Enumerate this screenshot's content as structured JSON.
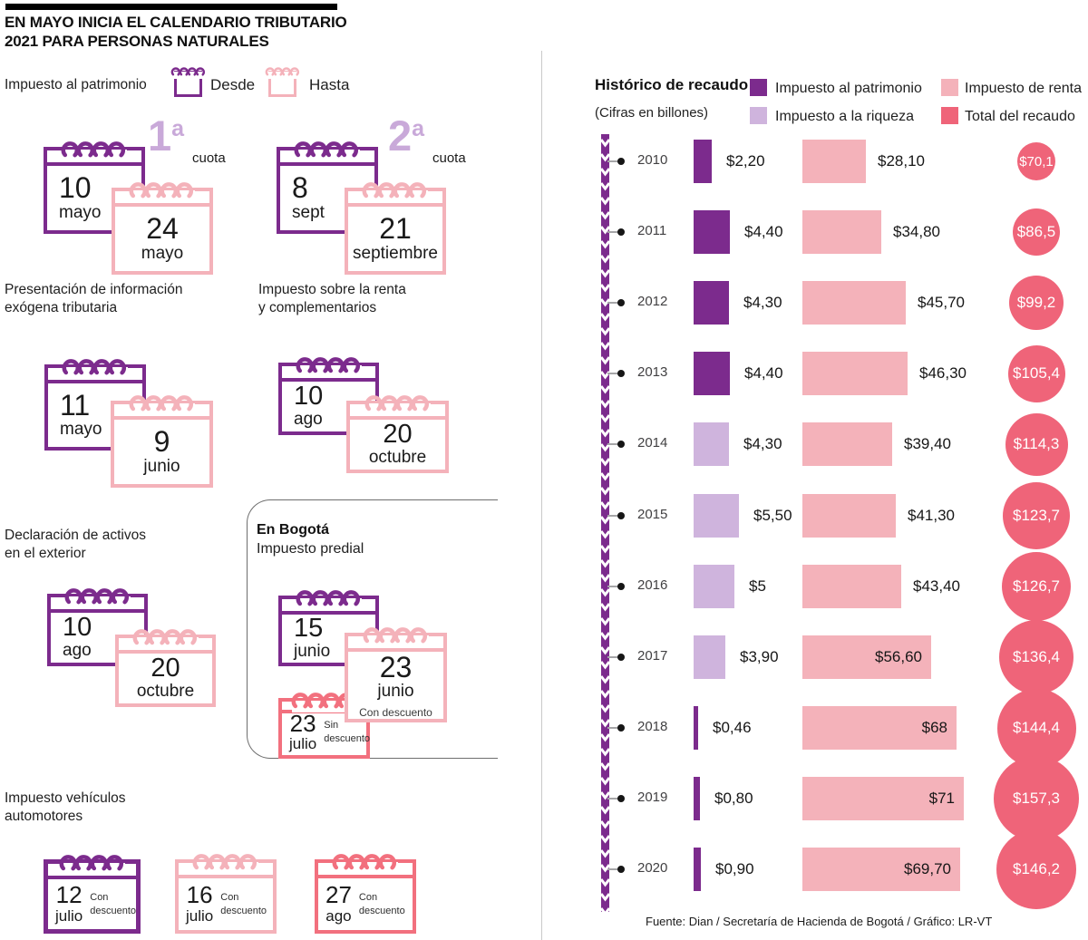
{
  "title": {
    "line1": "EN MAYO INICIA EL CALENDARIO TRIBUTARIO",
    "line2": "2021 PARA PERSONAS NATURALES"
  },
  "colors": {
    "patrimonio": "#7c2b8d",
    "riqueza": "#cfb4dd",
    "renta": "#f4b2ba",
    "total": "#ef6479",
    "ordinal": "#c9a9d9"
  },
  "left": {
    "patrimonio_title": "Impuesto al patrimonio",
    "legend": {
      "desde": "Desde",
      "hasta": "Hasta"
    },
    "cuota1": {
      "num": "1",
      "sup": "a",
      "word": "cuota",
      "desde": {
        "day": "10",
        "month": "mayo"
      },
      "hasta": {
        "day": "24",
        "month": "mayo"
      }
    },
    "cuota2": {
      "num": "2",
      "sup": "a",
      "word": "cuota",
      "desde": {
        "day": "8",
        "month": "sept"
      },
      "hasta": {
        "day": "21",
        "month": "septiembre"
      }
    },
    "exogena": {
      "title1": "Presentación de información",
      "title2": "exógena tributaria",
      "desde": {
        "day": "11",
        "month": "mayo"
      },
      "hasta": {
        "day": "9",
        "month": "junio"
      }
    },
    "renta": {
      "title1": "Impuesto sobre la renta",
      "title2": "y complementarios",
      "desde": {
        "day": "10",
        "month": "ago"
      },
      "hasta": {
        "day": "20",
        "month": "octubre"
      }
    },
    "activos": {
      "title1": "Declaración de activos",
      "title2": "en el exterior",
      "desde": {
        "day": "10",
        "month": "ago"
      },
      "hasta": {
        "day": "20",
        "month": "octubre"
      }
    },
    "bogota": {
      "title": "En Bogotá",
      "subtitle": "Impuesto predial",
      "desde": {
        "day": "15",
        "month": "junio"
      },
      "hasta": {
        "day": "23",
        "month": "junio",
        "note": "Con descuento"
      },
      "sin": {
        "day": "23",
        "month": "julio",
        "note1": "Sin",
        "note2": "descuento"
      }
    },
    "vehiculos": {
      "title1": "Impuesto vehículos",
      "title2": "automotores",
      "items": [
        {
          "day": "12",
          "month": "julio",
          "note1": "Con",
          "note2": "descuento",
          "color": "patrimonio"
        },
        {
          "day": "16",
          "month": "julio",
          "note1": "Con",
          "note2": "descuento",
          "color": "renta"
        },
        {
          "day": "27",
          "month": "ago",
          "note1": "Con",
          "note2": "descuento",
          "color": "total"
        }
      ]
    }
  },
  "chart_data": {
    "type": "bar",
    "title": "Histórico de recaudo",
    "subtitle": "(Cifras en billones)",
    "legend": [
      {
        "label": "Impuesto al patrimonio",
        "color": "#7c2b8d"
      },
      {
        "label": "Impuesto de renta",
        "color": "#f4b2ba"
      },
      {
        "label": "Impuesto a la riqueza",
        "color": "#cfb4dd"
      },
      {
        "label": "Total del recaudo",
        "color": "#ef6479"
      }
    ],
    "categories": [
      "2010",
      "2011",
      "2012",
      "2013",
      "2014",
      "2015",
      "2016",
      "2017",
      "2018",
      "2019",
      "2020"
    ],
    "series": [
      {
        "name": "Impuesto al patrimonio / Impuesto a la riqueza",
        "values": [
          2.2,
          4.4,
          4.3,
          4.4,
          4.3,
          5.5,
          5,
          3.9,
          0.46,
          0.8,
          0.9
        ]
      },
      {
        "name": "Impuesto de renta",
        "values": [
          28.1,
          34.8,
          45.7,
          46.3,
          39.4,
          41.3,
          43.4,
          56.6,
          68,
          71,
          69.7
        ]
      },
      {
        "name": "Total del recaudo",
        "values": [
          70.1,
          86.5,
          99.2,
          105.4,
          114.3,
          123.7,
          126.7,
          136.4,
          144.4,
          157.3,
          146.2
        ]
      }
    ],
    "rows": [
      {
        "year": "2010",
        "series": "Impuesto al patrimonio",
        "wealth": {
          "label": "$2,20",
          "value": 2.2
        },
        "renta": {
          "label": "$28,10",
          "value": 28.1
        },
        "total": {
          "label": "$70,1",
          "value": 70.1
        }
      },
      {
        "year": "2011",
        "series": "Impuesto al patrimonio",
        "wealth": {
          "label": "$4,40",
          "value": 4.4
        },
        "renta": {
          "label": "$34,80",
          "value": 34.8
        },
        "total": {
          "label": "$86,5",
          "value": 86.5
        }
      },
      {
        "year": "2012",
        "series": "Impuesto al patrimonio",
        "wealth": {
          "label": "$4,30",
          "value": 4.3
        },
        "renta": {
          "label": "$45,70",
          "value": 45.7
        },
        "total": {
          "label": "$99,2",
          "value": 99.2
        }
      },
      {
        "year": "2013",
        "series": "Impuesto al patrimonio",
        "wealth": {
          "label": "$4,40",
          "value": 4.4
        },
        "renta": {
          "label": "$46,30",
          "value": 46.3
        },
        "total": {
          "label": "$105,4",
          "value": 105.4
        }
      },
      {
        "year": "2014",
        "series": "Impuesto a la riqueza",
        "wealth": {
          "label": "$4,30",
          "value": 4.3
        },
        "renta": {
          "label": "$39,40",
          "value": 39.4
        },
        "total": {
          "label": "$114,3",
          "value": 114.3
        }
      },
      {
        "year": "2015",
        "series": "Impuesto a la riqueza",
        "wealth": {
          "label": "$5,50",
          "value": 5.5
        },
        "renta": {
          "label": "$41,30",
          "value": 41.3
        },
        "total": {
          "label": "$123,7",
          "value": 123.7
        }
      },
      {
        "year": "2016",
        "series": "Impuesto a la riqueza",
        "wealth": {
          "label": "$5",
          "value": 5
        },
        "renta": {
          "label": "$43,40",
          "value": 43.4
        },
        "total": {
          "label": "$126,7",
          "value": 126.7
        }
      },
      {
        "year": "2017",
        "series": "Impuesto a la riqueza",
        "wealth": {
          "label": "$3,90",
          "value": 3.9
        },
        "renta": {
          "label": "$56,60",
          "value": 56.6
        },
        "total": {
          "label": "$136,4",
          "value": 136.4
        }
      },
      {
        "year": "2018",
        "series": "Impuesto al patrimonio",
        "wealth": {
          "label": "$0,46",
          "value": 0.46
        },
        "renta": {
          "label": "$68",
          "value": 68
        },
        "total": {
          "label": "$144,4",
          "value": 144.4
        }
      },
      {
        "year": "2019",
        "series": "Impuesto al patrimonio",
        "wealth": {
          "label": "$0,80",
          "value": 0.8
        },
        "renta": {
          "label": "$71",
          "value": 71
        },
        "total": {
          "label": "$157,3",
          "value": 157.3
        }
      },
      {
        "year": "2020",
        "series": "Impuesto al patrimonio",
        "wealth": {
          "label": "$0,90",
          "value": 0.9
        },
        "renta": {
          "label": "$69,70",
          "value": 69.7
        },
        "total": {
          "label": "$146,2",
          "value": 146.2
        }
      }
    ],
    "legend_position": "top",
    "grid": false
  },
  "footer": "Fuente: Dian / Secretaría de Hacienda de Bogotá / Gráfico: LR-VT"
}
